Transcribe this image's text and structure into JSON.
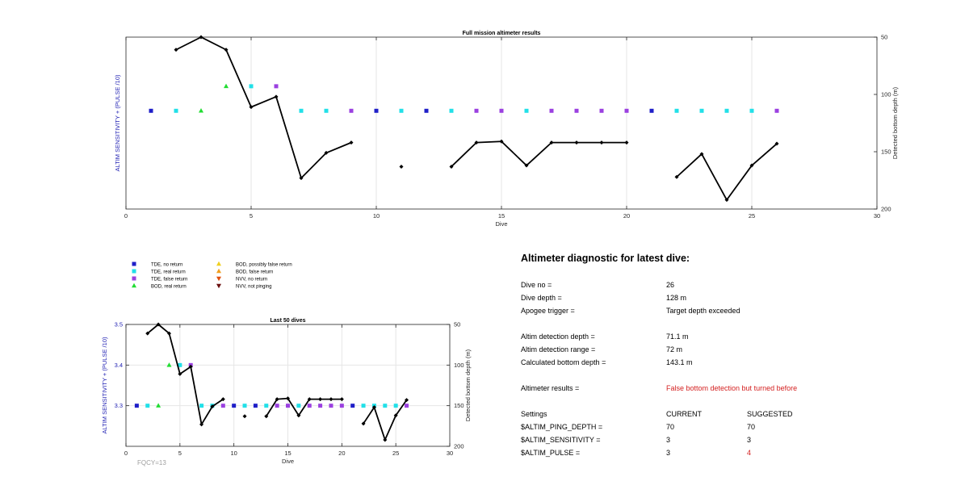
{
  "chart_data": [
    {
      "type": "scatter",
      "title": "Full mission altimeter results",
      "xlabel": "Dive",
      "ylabel_left": "ALTIM SENSITIVITY + (PULSE /10)",
      "ylabel_right": "Detected bottom depth (m)",
      "xlim": [
        0,
        30
      ],
      "xticks": [
        0,
        5,
        10,
        15,
        20,
        25,
        30
      ],
      "ylim_left": [
        2.9,
        3.6
      ],
      "ylim_right": [
        200,
        50
      ],
      "yticks_right": [
        50,
        100,
        150,
        200
      ],
      "grid": "vertical",
      "series": [
        {
          "name": "TDE, no return",
          "color": "#1f1fc8",
          "marker": "square",
          "points": [
            [
              1,
              3.3
            ],
            [
              10,
              3.3
            ],
            [
              12,
              3.3
            ],
            [
              21,
              3.3
            ]
          ]
        },
        {
          "name": "TDE, real return",
          "color": "#22e0e8",
          "marker": "square",
          "points": [
            [
              2,
              3.3
            ],
            [
              5,
              3.4
            ],
            [
              7,
              3.3
            ],
            [
              8,
              3.3
            ],
            [
              11,
              3.3
            ],
            [
              13,
              3.3
            ],
            [
              16,
              3.3
            ],
            [
              22,
              3.3
            ],
            [
              23,
              3.3
            ],
            [
              24,
              3.3
            ],
            [
              25,
              3.3
            ]
          ]
        },
        {
          "name": "TDE, false return",
          "color": "#9b40e0",
          "marker": "square",
          "points": [
            [
              6,
              3.4
            ],
            [
              9,
              3.3
            ],
            [
              14,
              3.3
            ],
            [
              15,
              3.3
            ],
            [
              17,
              3.3
            ],
            [
              18,
              3.3
            ],
            [
              19,
              3.3
            ],
            [
              20,
              3.3
            ],
            [
              26,
              3.3
            ]
          ]
        },
        {
          "name": "BOD, real return",
          "color": "#22dd33",
          "marker": "triangle-up",
          "points": [
            [
              3,
              3.3
            ],
            [
              4,
              3.4
            ]
          ]
        },
        {
          "name": "Detected bottom depth",
          "color": "#000000",
          "marker": "diamond-line",
          "axis": "right",
          "segments": [
            [
              [
                2,
                61
              ],
              [
                3,
                50
              ],
              [
                4,
                61
              ],
              [
                5,
                111
              ],
              [
                6,
                102
              ],
              [
                7,
                173
              ],
              [
                8,
                151
              ],
              [
                9,
                142
              ]
            ],
            [
              [
                11,
                163
              ]
            ],
            [
              [
                13,
                163
              ],
              [
                14,
                142
              ],
              [
                15,
                141
              ],
              [
                16,
                162
              ],
              [
                17,
                142
              ],
              [
                18,
                142
              ],
              [
                19,
                142
              ],
              [
                20,
                142
              ]
            ],
            [
              [
                22,
                172
              ],
              [
                23,
                152
              ],
              [
                24,
                192
              ],
              [
                25,
                162
              ],
              [
                26,
                143
              ]
            ]
          ]
        }
      ]
    },
    {
      "type": "scatter",
      "title": "Last 50 dives",
      "xlabel": "Dive",
      "ylabel_left": "ALTIM SENSITIVITY + (PULSE /10)",
      "ylabel_right": "Detected bottom depth (m)",
      "xlim": [
        0,
        30
      ],
      "xticks": [
        0,
        5,
        10,
        15,
        20,
        25,
        30
      ],
      "ylim_left": [
        3.2,
        3.5
      ],
      "yticks_left": [
        3.3,
        3.4,
        3.5
      ],
      "ylim_right": [
        200,
        50
      ],
      "yticks_right": [
        50,
        100,
        150,
        200
      ],
      "grid": "both",
      "series": [
        {
          "name": "TDE, no return",
          "color": "#1f1fc8",
          "marker": "square",
          "points": [
            [
              1,
              3.3
            ],
            [
              10,
              3.3
            ],
            [
              12,
              3.3
            ],
            [
              21,
              3.3
            ]
          ]
        },
        {
          "name": "TDE, real return",
          "color": "#22e0e8",
          "marker": "square",
          "points": [
            [
              2,
              3.3
            ],
            [
              5,
              3.4
            ],
            [
              7,
              3.3
            ],
            [
              8,
              3.3
            ],
            [
              11,
              3.3
            ],
            [
              13,
              3.3
            ],
            [
              16,
              3.3
            ],
            [
              22,
              3.3
            ],
            [
              23,
              3.3
            ],
            [
              24,
              3.3
            ],
            [
              25,
              3.3
            ]
          ]
        },
        {
          "name": "TDE, false return",
          "color": "#9b40e0",
          "marker": "square",
          "points": [
            [
              6,
              3.4
            ],
            [
              9,
              3.3
            ],
            [
              14,
              3.3
            ],
            [
              15,
              3.3
            ],
            [
              17,
              3.3
            ],
            [
              18,
              3.3
            ],
            [
              19,
              3.3
            ],
            [
              20,
              3.3
            ],
            [
              26,
              3.3
            ]
          ]
        },
        {
          "name": "BOD, real return",
          "color": "#22dd33",
          "marker": "triangle-up",
          "points": [
            [
              3,
              3.3
            ],
            [
              4,
              3.4
            ]
          ]
        },
        {
          "name": "Detected bottom depth",
          "color": "#000000",
          "marker": "diamond-line",
          "axis": "right",
          "segments": [
            [
              [
                2,
                61
              ],
              [
                3,
                50
              ],
              [
                4,
                61
              ],
              [
                5,
                111
              ],
              [
                6,
                102
              ],
              [
                7,
                173
              ],
              [
                8,
                151
              ],
              [
                9,
                142
              ]
            ],
            [
              [
                11,
                163
              ]
            ],
            [
              [
                13,
                163
              ],
              [
                14,
                142
              ],
              [
                15,
                141
              ],
              [
                16,
                162
              ],
              [
                17,
                142
              ],
              [
                18,
                142
              ],
              [
                19,
                142
              ],
              [
                20,
                142
              ]
            ],
            [
              [
                22,
                172
              ],
              [
                23,
                152
              ],
              [
                24,
                192
              ],
              [
                25,
                162
              ],
              [
                26,
                143
              ]
            ]
          ]
        }
      ],
      "annotation": "FQCY=13"
    }
  ],
  "legend": [
    {
      "label": "TDE, no return",
      "color": "#1f1fc8",
      "marker": "square"
    },
    {
      "label": "TDE, real return",
      "color": "#22e0e8",
      "marker": "square"
    },
    {
      "label": "TDE, false return",
      "color": "#9b40e0",
      "marker": "square"
    },
    {
      "label": "BOD, real return",
      "color": "#22dd33",
      "marker": "triangle-up"
    },
    {
      "label": "BOD, possibly false return",
      "color": "#f0d020",
      "marker": "triangle-up"
    },
    {
      "label": "BOD, false return",
      "color": "#f0a020",
      "marker": "triangle-up"
    },
    {
      "label": "NVV, no return",
      "color": "#e05010",
      "marker": "triangle-down"
    },
    {
      "label": "NVV, not pinging",
      "color": "#6b1010",
      "marker": "triangle-down"
    }
  ],
  "diagnostic": {
    "title": "Altimeter diagnostic for latest dive:",
    "rows": [
      {
        "label": "Dive no =",
        "value": "26"
      },
      {
        "label": "Dive depth =",
        "value": "128 m"
      },
      {
        "label": "Apogee trigger =",
        "value": "Target depth exceeded"
      },
      {
        "label": "Altim detection depth =",
        "value": "71.1 m"
      },
      {
        "label": "Altim detection range =",
        "value": "72 m"
      },
      {
        "label": "Calculated bottom depth =",
        "value": "143.1 m"
      },
      {
        "label": "Altimeter results =",
        "value": "False bottom detection but turned before"
      }
    ],
    "settings": {
      "header": {
        "label": "Settings",
        "current": "CURRENT",
        "suggested": "SUGGESTED"
      },
      "rows": [
        {
          "label": "$ALTIM_PING_DEPTH =",
          "current": "70",
          "suggested": "70"
        },
        {
          "label": "$ALTIM_SENSITIVITY =",
          "current": "3",
          "suggested": "3"
        },
        {
          "label": "$ALTIM_PULSE =",
          "current": "3",
          "suggested": "4"
        }
      ]
    }
  }
}
